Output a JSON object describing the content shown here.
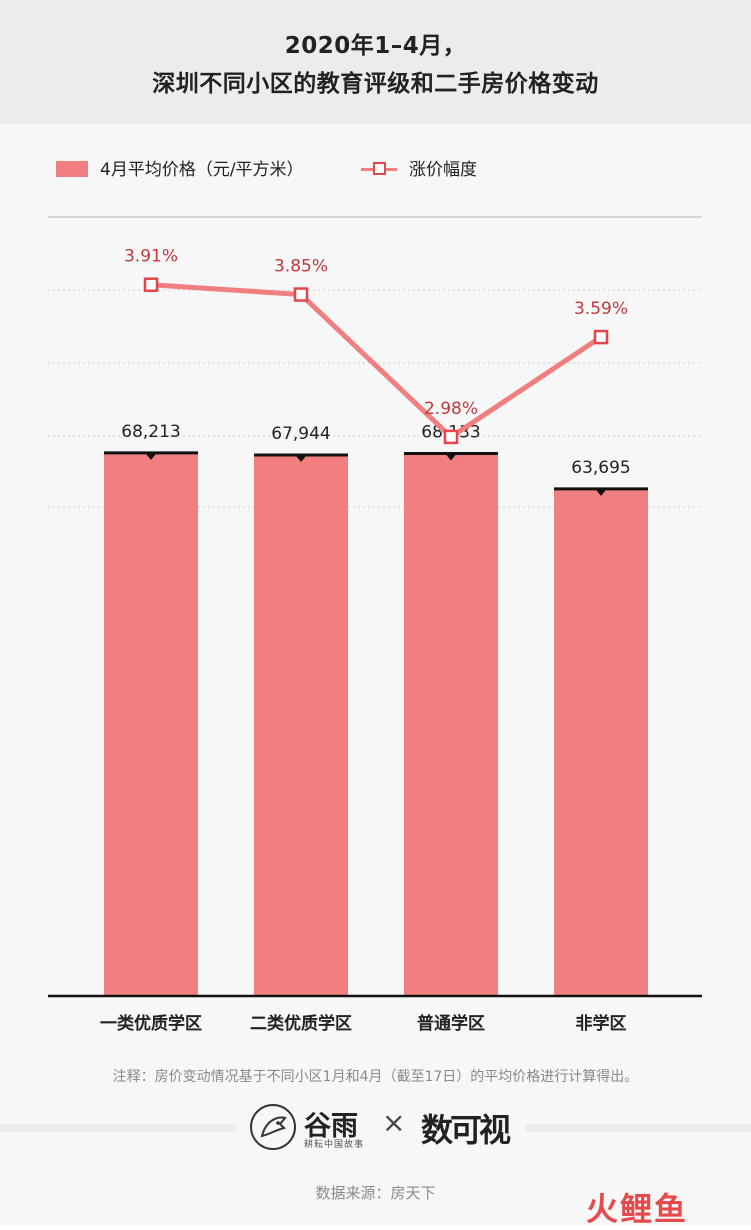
{
  "header": {
    "title_line1": "2020年1–4月，",
    "title_line2": "深圳不同小区的教育评级和二手房价格变动"
  },
  "legend": {
    "bar_label": "4月平均价格（元/平方米）",
    "line_label": "涨价幅度"
  },
  "chart_data": {
    "type": "bar",
    "categories": [
      "一类优质学区",
      "二类优质学区",
      "普通学区",
      "非学区"
    ],
    "series": [
      {
        "name": "4月平均价格（元/平方米）",
        "type": "bar",
        "values": [
          68213,
          67944,
          68133,
          63695
        ],
        "labels": [
          "68,213",
          "67,944",
          "68,133",
          "63,695"
        ],
        "color": "#f27f80"
      },
      {
        "name": "涨价幅度",
        "type": "line",
        "values": [
          3.91,
          3.85,
          2.98,
          3.59
        ],
        "labels": [
          "3.91%",
          "3.85%",
          "2.98%",
          "3.59%"
        ],
        "color": "#f27f80",
        "marker_color": "#e2474b"
      }
    ],
    "bar_ylim": [
      0,
      80000
    ],
    "line_ylim": [
      2.9,
      4.0
    ],
    "grid": true,
    "legend_position": "top-left"
  },
  "footer": {
    "note": "注释：房价变动情况基于不同小区1月和4月（截至17日）的平均价格进行计算得出。",
    "logo_a_name": "谷雨",
    "logo_a_sub": "耕耘中国故事",
    "logo_separator": "×",
    "logo_b_name": "数可视",
    "source": "数据来源：房天下",
    "corner_logo": "火鲤鱼"
  },
  "colors": {
    "bar": "#f27f80",
    "line": "#f27f80",
    "marker_border": "#e2474b",
    "value_label_red": "#c0393b",
    "background": "#f7f7f7",
    "header_bg": "#ececec"
  }
}
